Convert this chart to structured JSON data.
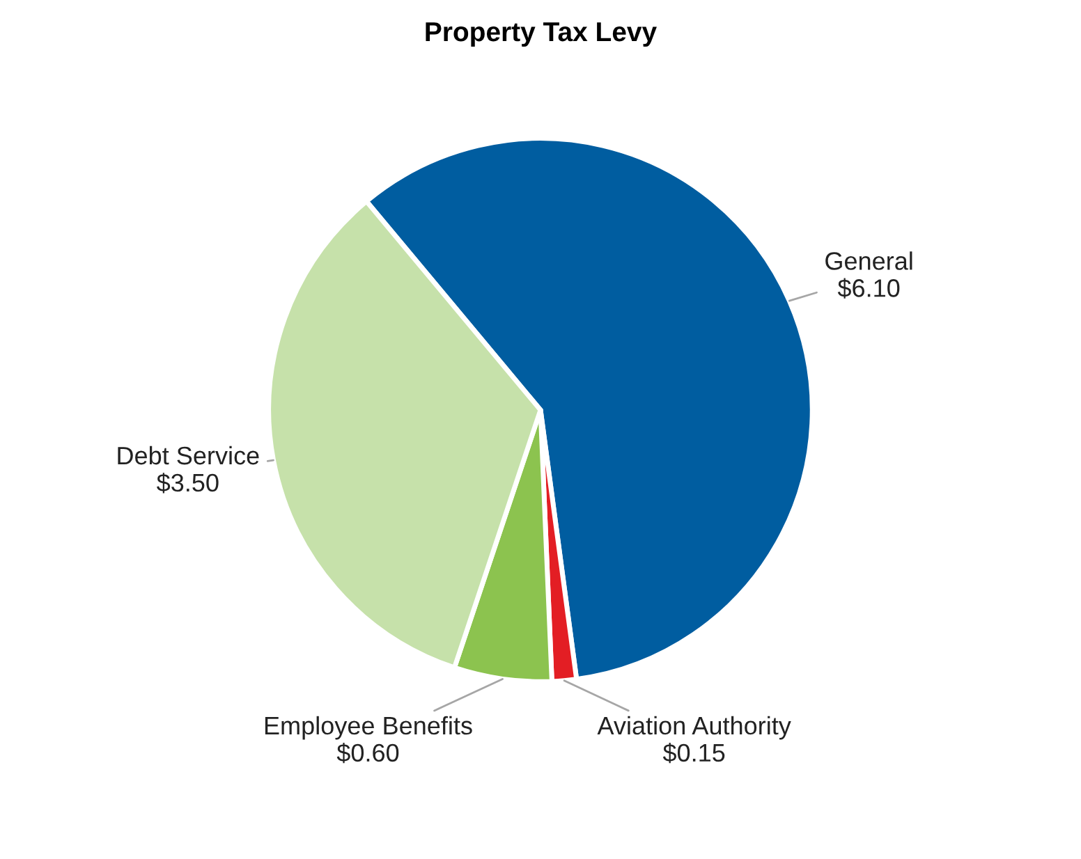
{
  "chart_data": {
    "type": "pie",
    "title": "Property Tax Levy",
    "categories": [
      "General",
      "Aviation Authority",
      "Employee Benefits",
      "Debt Service"
    ],
    "values": [
      6.1,
      0.15,
      0.6,
      3.5
    ],
    "value_labels": [
      "$6.10",
      "$0.15",
      "$0.60",
      "$3.50"
    ],
    "colors": [
      "#005da0",
      "#e31e24",
      "#8cc34f",
      "#c6e1aa"
    ]
  }
}
